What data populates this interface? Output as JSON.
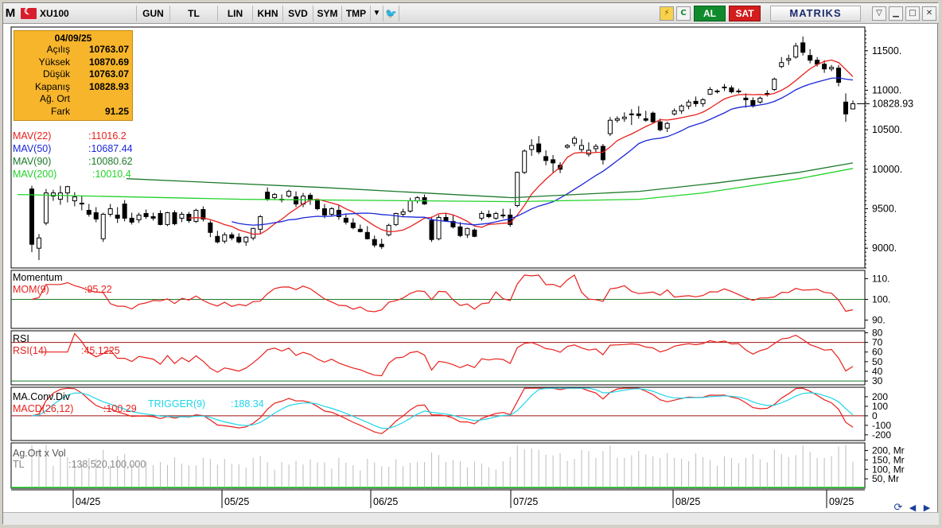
{
  "toolbar": {
    "logo": "M",
    "symbol": "XU100",
    "buttons": [
      "GUN",
      "TL",
      "LIN",
      "KHN",
      "SVD",
      "SYM",
      "TMP"
    ],
    "al": "AL",
    "sat": "SAT",
    "brand": "MATRIKS",
    "icons": [
      "dropdown-icon",
      "twitter-icon",
      "lightning-icon",
      "refresh-icon",
      "filter-icon",
      "minimize-icon",
      "maximize-icon",
      "close-icon"
    ]
  },
  "infobox": {
    "date": "04/09/25",
    "rows": [
      {
        "k": "Açılış",
        "v": "10763.07"
      },
      {
        "k": "Yüksek",
        "v": "10870.69"
      },
      {
        "k": "Düşük",
        "v": "10763.07"
      },
      {
        "k": "Kapanış",
        "v": "10828.93"
      },
      {
        "k": "Ağ. Ort",
        "v": ""
      },
      {
        "k": "Fark",
        "v": "91.25"
      }
    ]
  },
  "legend": {
    "mav22": "MAV(22)",
    "mav22_v": ":11016.2",
    "mav50": "MAV(50)",
    "mav50_v": ":10687.44",
    "mav90": "MAV(90)",
    "mav90_v": ":10080.62",
    "mav200": "MAV(200)",
    "mav200_v": ":10010.4",
    "momentum": "Momentum",
    "mom": "MOM(9)",
    "mom_v": ":95.22",
    "rsi": "RSI",
    "rsi14": "RSI(14)",
    "rsi_v": ":45.1225",
    "macd_title": "MA.Conv.Div",
    "macd": "MACD(26,12)",
    "macd_v": ":100.29",
    "trigger": "TRIGGER(9)",
    "trigger_v": ":188.34",
    "vol_title": "Ag.Ort x Vol",
    "vol": "TL",
    "vol_v": ":138,520,100,000"
  },
  "colors": {
    "mav22": "#e8201c",
    "mav50": "#1a27d8",
    "mav90": "#1c7a2a",
    "mav200": "#22d22a",
    "mom": "#e8201c",
    "rsi": "#e8201c",
    "macd": "#e8201c",
    "trigger": "#1ed6e8",
    "vol": "#22d22a",
    "ref": "#1c7a2a",
    "grid": "#000000"
  },
  "chart_data": {
    "type": "candlestick",
    "symbol": "XU100",
    "x_ticks": [
      "04/25",
      "05/25",
      "06/25",
      "07/25",
      "08/25",
      "09/25"
    ],
    "price_axis": {
      "ticks": [
        "11500.",
        "11000.",
        "10500.",
        "10000.",
        "9500.",
        "9000."
      ],
      "min": 8750,
      "max": 11800,
      "last": "10828.93"
    },
    "candles": [
      [
        9750,
        9790,
        8950,
        9050
      ],
      [
        9000,
        9180,
        8850,
        9130
      ],
      [
        9320,
        9750,
        9290,
        9700
      ],
      [
        9660,
        9740,
        9600,
        9700
      ],
      [
        9620,
        9790,
        9550,
        9700
      ],
      [
        9700,
        9790,
        9580,
        9780
      ],
      [
        9600,
        9710,
        9530,
        9650
      ],
      [
        9570,
        9660,
        9480,
        9560
      ],
      [
        9480,
        9560,
        9400,
        9430
      ],
      [
        9450,
        9520,
        9330,
        9370
      ],
      [
        9120,
        9450,
        9080,
        9430
      ],
      [
        9430,
        9560,
        9400,
        9500
      ],
      [
        9420,
        9520,
        9320,
        9380
      ],
      [
        9560,
        9610,
        9340,
        9380
      ],
      [
        9380,
        9450,
        9300,
        9330
      ],
      [
        9360,
        9450,
        9320,
        9420
      ],
      [
        9440,
        9490,
        9370,
        9400
      ],
      [
        9400,
        9450,
        9350,
        9380
      ],
      [
        9440,
        9480,
        9290,
        9300
      ],
      [
        9300,
        9460,
        9280,
        9450
      ],
      [
        9450,
        9480,
        9290,
        9310
      ],
      [
        9380,
        9460,
        9330,
        9430
      ],
      [
        9430,
        9460,
        9320,
        9350
      ],
      [
        9340,
        9500,
        9320,
        9480
      ],
      [
        9490,
        9530,
        9340,
        9370
      ],
      [
        9320,
        9350,
        9140,
        9200
      ],
      [
        9150,
        9220,
        9060,
        9080
      ],
      [
        9090,
        9200,
        9060,
        9170
      ],
      [
        9170,
        9200,
        9100,
        9130
      ],
      [
        9140,
        9190,
        9060,
        9080
      ],
      [
        9080,
        9150,
        9030,
        9140
      ],
      [
        9130,
        9260,
        9100,
        9250
      ],
      [
        9240,
        9420,
        9190,
        9400
      ],
      [
        9710,
        9770,
        9600,
        9620
      ],
      [
        9640,
        9700,
        9610,
        9680
      ],
      [
        9620,
        9680,
        9580,
        9620
      ],
      [
        9660,
        9740,
        9640,
        9720
      ],
      [
        9650,
        9720,
        9520,
        9560
      ],
      [
        9560,
        9700,
        9520,
        9660
      ],
      [
        9670,
        9700,
        9550,
        9610
      ],
      [
        9600,
        9620,
        9480,
        9500
      ],
      [
        9500,
        9560,
        9380,
        9420
      ],
      [
        9430,
        9520,
        9400,
        9500
      ],
      [
        9480,
        9540,
        9360,
        9400
      ],
      [
        9380,
        9440,
        9300,
        9330
      ],
      [
        9320,
        9380,
        9240,
        9260
      ],
      [
        9240,
        9300,
        9200,
        9210
      ],
      [
        9200,
        9280,
        9110,
        9120
      ],
      [
        9110,
        9160,
        9010,
        9040
      ],
      [
        9050,
        9120,
        8990,
        9020
      ],
      [
        9170,
        9310,
        9150,
        9290
      ],
      [
        9300,
        9450,
        9280,
        9440
      ],
      [
        9430,
        9500,
        9400,
        9460
      ],
      [
        9470,
        9640,
        9450,
        9600
      ],
      [
        9600,
        9660,
        9570,
        9640
      ],
      [
        9640,
        9680,
        9550,
        9560
      ],
      [
        9350,
        9400,
        9080,
        9110
      ],
      [
        9120,
        9420,
        9100,
        9390
      ],
      [
        9390,
        9440,
        9340,
        9350
      ],
      [
        9340,
        9420,
        9250,
        9270
      ],
      [
        9270,
        9330,
        9140,
        9160
      ],
      [
        9170,
        9260,
        9130,
        9250
      ],
      [
        9230,
        9250,
        9140,
        9150
      ],
      [
        9380,
        9470,
        9350,
        9440
      ],
      [
        9430,
        9480,
        9380,
        9400
      ],
      [
        9380,
        9460,
        9360,
        9440
      ],
      [
        9420,
        9500,
        9380,
        9420
      ],
      [
        9420,
        9500,
        9270,
        9300
      ],
      [
        9540,
        9970,
        9520,
        9960
      ],
      [
        9960,
        10250,
        9940,
        10230
      ],
      [
        10250,
        10380,
        10170,
        10300
      ],
      [
        10320,
        10420,
        10190,
        10220
      ],
      [
        10160,
        10240,
        10050,
        10110
      ],
      [
        10120,
        10180,
        9960,
        10080
      ],
      [
        10050,
        10090,
        9950,
        10000
      ],
      [
        10280,
        10320,
        10260,
        10300
      ],
      [
        10330,
        10420,
        10290,
        10390
      ],
      [
        10250,
        10380,
        10220,
        10300
      ],
      [
        10190,
        10340,
        10160,
        10240
      ],
      [
        10260,
        10320,
        10210,
        10290
      ],
      [
        10290,
        10320,
        10060,
        10120
      ],
      [
        10450,
        10660,
        10420,
        10620
      ],
      [
        10620,
        10670,
        10590,
        10640
      ],
      [
        10640,
        10720,
        10600,
        10660
      ],
      [
        10700,
        10760,
        10560,
        10700
      ],
      [
        10700,
        10800,
        10640,
        10680
      ],
      [
        10640,
        10740,
        10600,
        10620
      ],
      [
        10710,
        10730,
        10580,
        10600
      ],
      [
        10600,
        10640,
        10480,
        10500
      ],
      [
        10520,
        10600,
        10470,
        10580
      ],
      [
        10700,
        10770,
        10680,
        10740
      ],
      [
        10740,
        10820,
        10700,
        10800
      ],
      [
        10800,
        10880,
        10760,
        10850
      ],
      [
        10860,
        10920,
        10790,
        10830
      ],
      [
        10830,
        10900,
        10790,
        10880
      ],
      [
        10950,
        11040,
        10940,
        11010
      ],
      [
        10990,
        11010,
        10960,
        10980
      ],
      [
        11040,
        11080,
        10990,
        11030
      ],
      [
        11030,
        11060,
        10960,
        10980
      ],
      [
        10990,
        11020,
        10960,
        10990
      ],
      [
        10900,
        10960,
        10780,
        10880
      ],
      [
        10870,
        10910,
        10780,
        10800
      ],
      [
        10850,
        10920,
        10830,
        10900
      ],
      [
        10950,
        11000,
        10920,
        10960
      ],
      [
        11010,
        11160,
        10990,
        11140
      ],
      [
        11300,
        11420,
        11280,
        11350
      ],
      [
        11380,
        11450,
        11320,
        11400
      ],
      [
        11420,
        11600,
        11400,
        11560
      ],
      [
        11600,
        11680,
        11440,
        11480
      ],
      [
        11440,
        11520,
        11340,
        11380
      ],
      [
        11380,
        11420,
        11300,
        11330
      ],
      [
        11330,
        11380,
        11220,
        11270
      ],
      [
        11270,
        11320,
        11240,
        11290
      ],
      [
        11280,
        11320,
        11050,
        11100
      ],
      [
        10850,
        10960,
        10600,
        10700
      ],
      [
        10763.07,
        10870.69,
        10763.07,
        10828.93
      ]
    ],
    "mav_series": [
      "MAV(22)",
      "MAV(50)",
      "MAV(90)",
      "MAV(200)"
    ],
    "momentum": {
      "ticks": [
        "110.",
        "100.",
        "90."
      ],
      "reference": 100,
      "last": 95.22
    },
    "rsi": {
      "ticks": [
        "80",
        "70",
        "60",
        "50",
        "40",
        "30"
      ],
      "levels": [
        70,
        30
      ],
      "last": 45.1225
    },
    "macd": {
      "ticks": [
        "200",
        "100",
        "0",
        "-100",
        "-200"
      ],
      "macd_last": 100.29,
      "trigger_last": 188.34
    },
    "volume": {
      "ticks": [
        "200, Mr",
        "150, Mr",
        "100, Mr",
        "50, Mr"
      ],
      "last": "138,520,100,000"
    }
  }
}
